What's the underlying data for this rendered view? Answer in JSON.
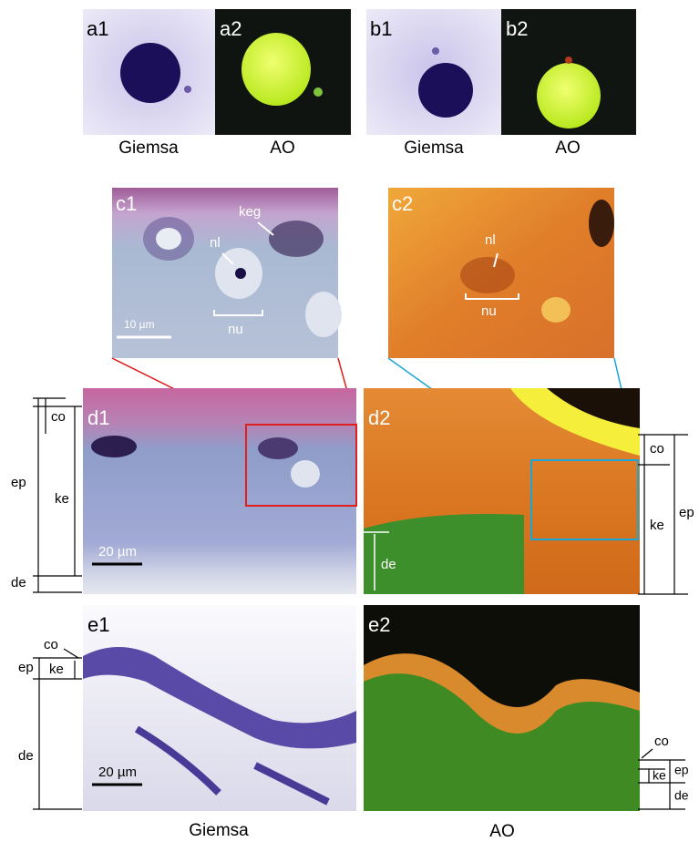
{
  "top_row": {
    "panels": [
      "a1",
      "a2",
      "b1",
      "b2"
    ],
    "captions": [
      "Giemsa",
      "AO",
      "Giemsa",
      "AO"
    ]
  },
  "c_row": {
    "panels": [
      "c1",
      "c2"
    ],
    "c1_annotations": [
      "keg",
      "nl",
      "nu",
      "10 µm"
    ],
    "c2_annotations": [
      "nl",
      "nu"
    ]
  },
  "d_row": {
    "panels": [
      "d1",
      "d2"
    ],
    "left_scale": [
      "co",
      "ep",
      "ke",
      "de"
    ],
    "scale_bar": "20 µm",
    "d2_annotations": [
      "de"
    ],
    "right_scale": [
      "co",
      "ke",
      "ep"
    ]
  },
  "e_row": {
    "panels": [
      "e1",
      "e2"
    ],
    "left_scale": [
      "co",
      "ep",
      "ke",
      "de"
    ],
    "scale_bar": "20 µm",
    "right_scale": [
      "co",
      "ep",
      "ke",
      "de"
    ]
  },
  "bottom_captions": [
    "Giemsa",
    "AO"
  ]
}
